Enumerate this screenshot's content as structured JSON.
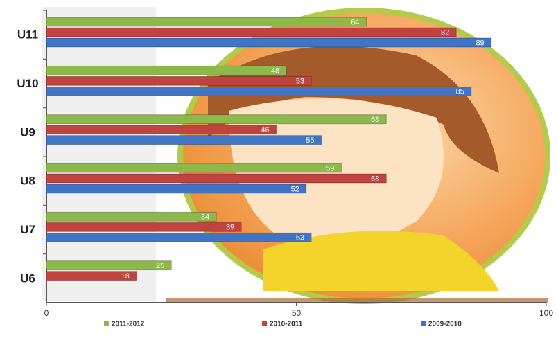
{
  "chart_data": {
    "type": "bar",
    "orientation": "horizontal",
    "categories": [
      "U11",
      "U10",
      "U9",
      "U8",
      "U7",
      "U6"
    ],
    "series": [
      {
        "name": "2011-2012",
        "color": "#8db84a",
        "values": [
          64,
          48,
          68,
          59,
          34,
          25
        ]
      },
      {
        "name": "2010-2011",
        "color": "#c0433f",
        "values": [
          82,
          53,
          46,
          68,
          39,
          18
        ]
      },
      {
        "name": "2009-2010",
        "color": "#3f75c4",
        "values": [
          89,
          85,
          55,
          52,
          53,
          null
        ]
      }
    ],
    "xlim": [
      0,
      100
    ],
    "xticks": [
      0,
      50,
      100
    ],
    "legend": "bottom"
  }
}
